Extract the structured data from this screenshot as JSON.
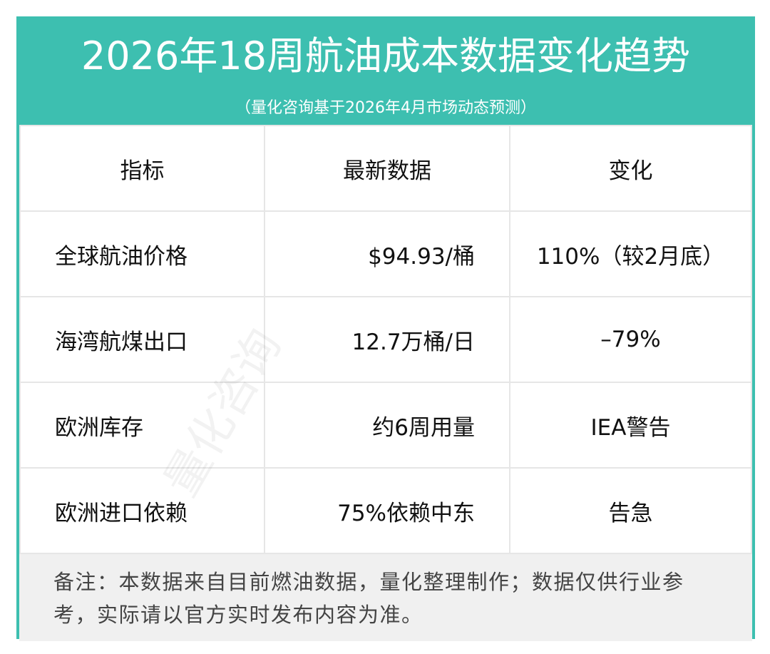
{
  "header": {
    "title": "2026年18周航油成本数据变化趋势",
    "subtitle": "（量化咨询基于2026年4月市场动态预测）"
  },
  "table": {
    "columns": [
      "指标",
      "最新数据",
      "变化"
    ],
    "rows": [
      [
        "全球航油价格",
        "$94.93/桶",
        "110%（较2月底）"
      ],
      [
        "海湾航煤出口",
        "12.7万桶/日",
        "–79%"
      ],
      [
        "欧洲库存",
        "约6周用量",
        "IEA警告"
      ],
      [
        "欧洲进口依赖",
        "75%依赖中东",
        "告急"
      ]
    ]
  },
  "note": "备注：本数据来自目前燃油数据，量化整理制作；数据仅供行业参考，实际请以官方实时发布内容为准。",
  "watermark": "量化咨询"
}
